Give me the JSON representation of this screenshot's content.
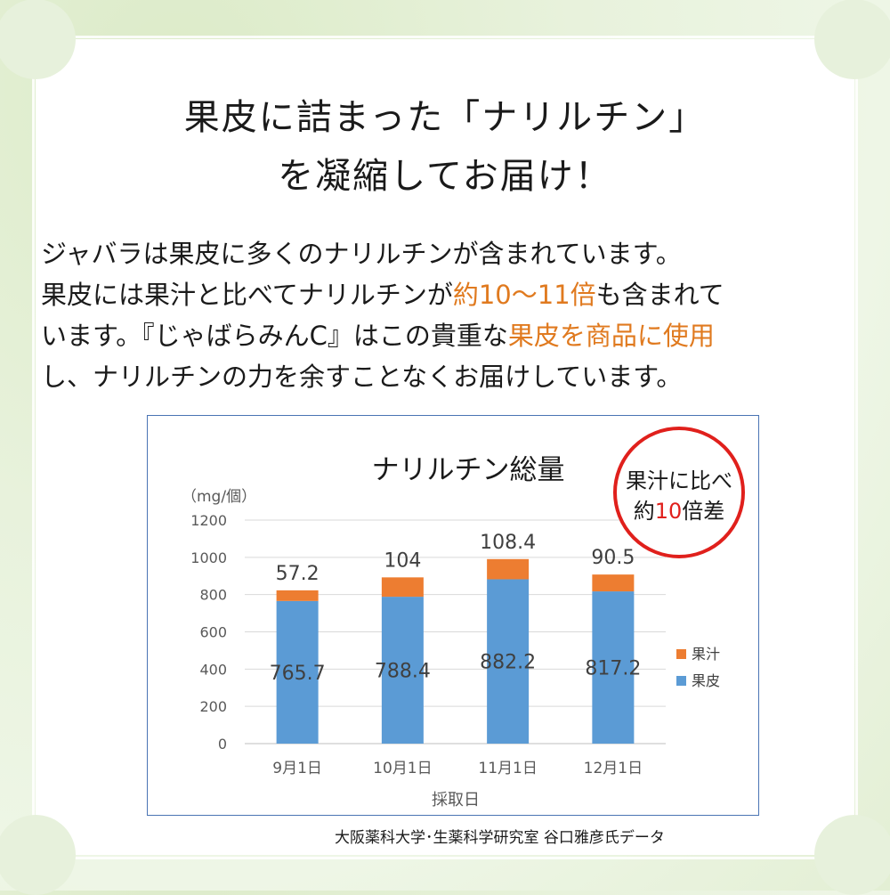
{
  "headline": {
    "line1": "果皮に詰まった「ナリルチン」",
    "line2": "を凝縮してお届け！"
  },
  "body": {
    "l1": "ジャバラは果皮に多くのナリルチンが含まれています。",
    "l2a": "果皮には果汁と比べてナリルチンが",
    "l2b": "約10〜11倍",
    "l2c": "も含まれて",
    "l3a": "います。『じゃばらみんC』はこの貴重な",
    "l3b": "果皮を商品に使用",
    "l4": "し、ナリルチンの力を余すことなくお届けしています。"
  },
  "badge": {
    "line1": "果汁に比べ",
    "pre": "約",
    "num": "10",
    "post": "倍差",
    "color": "#e0201c"
  },
  "credit": "大阪薬科大学･生薬科学研究室 谷口雅彦氏データ",
  "colors": {
    "peel": "#5b9bd5",
    "juice": "#ed7d31",
    "highlight": "#e07a1f"
  },
  "chart_data": {
    "type": "bar",
    "stacked": true,
    "title": "ナリルチン総量",
    "ylabel": "（mg/個）",
    "xlabel": "採取日",
    "categories": [
      "9月1日",
      "10月1日",
      "11月1日",
      "12月1日"
    ],
    "series": [
      {
        "name": "果皮",
        "values": [
          765.7,
          788.4,
          882.2,
          817.2
        ],
        "color": "#5b9bd5"
      },
      {
        "name": "果汁",
        "values": [
          57.2,
          104,
          108.4,
          90.5
        ],
        "color": "#ed7d31"
      }
    ],
    "ylim": [
      0,
      1200
    ],
    "yticks": [
      0,
      200,
      400,
      600,
      800,
      1000,
      1200
    ],
    "grid": true,
    "legend": "right"
  }
}
